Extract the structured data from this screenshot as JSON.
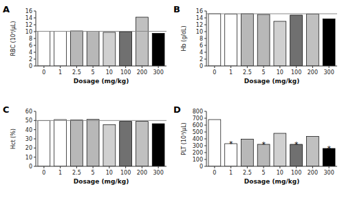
{
  "chart_data": [
    {
      "type": "bar",
      "title": "A",
      "xlabel": "Dosage (mg/kg)",
      "ylabel": "RBC (10⁶/μL)",
      "categories": [
        "0",
        "1",
        "2.5",
        "5",
        "10",
        "100",
        "200",
        "300"
      ],
      "values": [
        10.1,
        10.1,
        10.2,
        10.1,
        9.8,
        10.0,
        14.2,
        9.5
      ],
      "colors": [
        "white",
        "white",
        "#b8b8b8",
        "#b8b8b8",
        "#d0d0d0",
        "#707070",
        "#c0c0c0",
        "black"
      ],
      "control_line": 10.1,
      "ylim": [
        0,
        16
      ],
      "yticks": [
        0,
        2,
        4,
        6,
        8,
        10,
        12,
        14,
        16
      ],
      "grid": false
    },
    {
      "type": "bar",
      "title": "B",
      "xlabel": "Dosage (mg/kg)",
      "ylabel": "Hb (g/dL)",
      "categories": [
        "0",
        "1",
        "2.5",
        "5",
        "10",
        "100",
        "200",
        "300"
      ],
      "values": [
        15.2,
        15.1,
        15.2,
        15.0,
        13.0,
        14.8,
        15.1,
        13.7
      ],
      "colors": [
        "white",
        "white",
        "#b8b8b8",
        "#b8b8b8",
        "#d0d0d0",
        "#707070",
        "#c0c0c0",
        "black"
      ],
      "control_line": 15.2,
      "ylim": [
        0,
        16
      ],
      "yticks": [
        0,
        2,
        4,
        6,
        8,
        10,
        12,
        14,
        16
      ],
      "grid": false
    },
    {
      "type": "bar",
      "title": "C",
      "xlabel": "Dosage (mg/kg)",
      "ylabel": "Hct (%)",
      "categories": [
        "0",
        "1",
        "2.5",
        "5",
        "10",
        "100",
        "200",
        "300"
      ],
      "values": [
        50.0,
        51.0,
        50.5,
        51.2,
        45.5,
        49.0,
        49.0,
        46.5
      ],
      "colors": [
        "white",
        "white",
        "#b8b8b8",
        "#b8b8b8",
        "#d0d0d0",
        "#707070",
        "#c0c0c0",
        "black"
      ],
      "control_line": 50.0,
      "ylim": [
        0,
        60
      ],
      "yticks": [
        0,
        10,
        20,
        30,
        40,
        50,
        60
      ],
      "grid": false
    },
    {
      "type": "bar",
      "title": "D",
      "xlabel": "Dosage (mg/kg)",
      "ylabel": "PLT (10³/μL)",
      "categories": [
        "0",
        "1",
        "2.5",
        "5",
        "10",
        "100",
        "200",
        "300"
      ],
      "values": [
        680,
        330,
        395,
        320,
        480,
        320,
        435,
        260
      ],
      "colors": [
        "white",
        "white",
        "#b8b8b8",
        "#b8b8b8",
        "#d0d0d0",
        "#707070",
        "#c0c0c0",
        "black"
      ],
      "annotations": [
        {
          "x": "1",
          "text": "*"
        },
        {
          "x": "5",
          "text": "*"
        },
        {
          "x": "100",
          "text": "*"
        },
        {
          "x": "300",
          "text": "*"
        }
      ],
      "ylim": [
        0,
        800
      ],
      "yticks": [
        0,
        100,
        200,
        300,
        400,
        500,
        600,
        700,
        800
      ],
      "grid": false
    }
  ]
}
